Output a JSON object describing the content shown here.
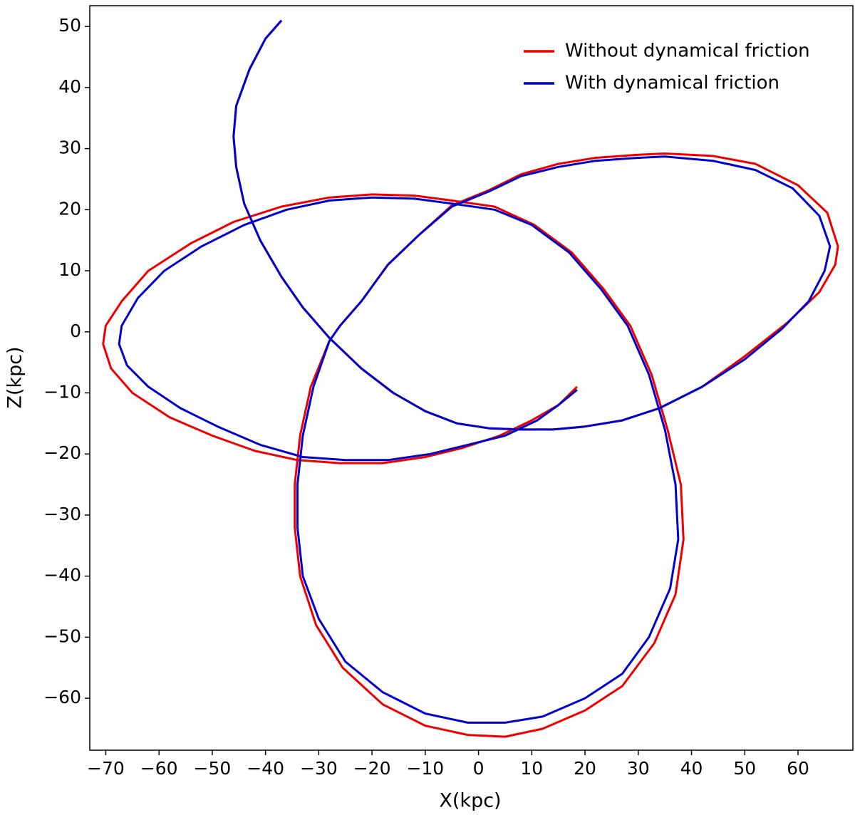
{
  "chart_data": {
    "type": "line",
    "x_label": "X(kpc)",
    "y_label": "Z(kpc)",
    "xlim": [
      -73,
      70.3
    ],
    "ylim": [
      -68.5,
      53.4
    ],
    "xticks": [
      {
        "value": -70,
        "label": "−70"
      },
      {
        "value": -60,
        "label": "−60"
      },
      {
        "value": -50,
        "label": "−50"
      },
      {
        "value": -40,
        "label": "−40"
      },
      {
        "value": -30,
        "label": "−30"
      },
      {
        "value": -20,
        "label": "−20"
      },
      {
        "value": -10,
        "label": "−10"
      },
      0,
      10,
      20,
      30,
      40,
      50,
      60
    ],
    "yticks": [
      {
        "value": -60,
        "label": "−60"
      },
      {
        "value": -50,
        "label": "−50"
      },
      {
        "value": -40,
        "label": "−40"
      },
      {
        "value": -30,
        "label": "−30"
      },
      {
        "value": -20,
        "label": "−20"
      },
      {
        "value": -10,
        "label": "−10"
      },
      0,
      10,
      20,
      30,
      40,
      50
    ],
    "grid": false,
    "legend": "upper right",
    "series": [
      {
        "name": "Without dynamical friction",
        "color": "#ee0000",
        "x": [
          -37,
          -40,
          -43,
          -45.5,
          -46,
          -45.5,
          -44,
          -41,
          -37,
          -33,
          -28,
          -22,
          -16,
          -10,
          -4,
          2,
          8,
          14,
          20,
          27,
          34,
          42,
          50,
          58,
          64,
          67,
          67.5,
          65.5,
          60,
          52,
          44,
          35,
          30,
          22,
          15,
          8,
          2,
          -5,
          -11,
          -17,
          -22,
          -26,
          -28,
          -31.5,
          -33.5,
          -34.5,
          -34.5,
          -33.5,
          -30.5,
          -25.5,
          -18,
          -10,
          -2,
          5,
          12,
          20,
          27,
          33,
          37,
          38.5,
          38,
          35.5,
          32.5,
          28.5,
          23.5,
          17.5,
          10.5,
          3,
          -5,
          -12,
          -20,
          -28,
          -37,
          -46,
          -54,
          -62,
          -67,
          -70,
          -70.5,
          -69,
          -65,
          -58,
          -50,
          -42,
          -34,
          -26,
          -18,
          -10,
          -3,
          4,
          10,
          15,
          18.5
        ],
        "y": [
          51,
          48,
          43,
          37,
          32,
          27,
          21,
          15,
          9,
          4,
          -1,
          -6,
          -10,
          -13,
          -15,
          -15.8,
          -16,
          -16,
          -15.5,
          -14.5,
          -12.5,
          -9,
          -4,
          1.5,
          6.5,
          11,
          14,
          19.5,
          24,
          27.5,
          28.8,
          29.2,
          29,
          28.5,
          27.5,
          25.8,
          23.2,
          20.7,
          16,
          11,
          5,
          1,
          -1.5,
          -9,
          -17,
          -25,
          -32,
          -40,
          -48,
          -55,
          -61,
          -64.5,
          -66,
          -66.3,
          -65,
          -62,
          -58,
          -51,
          -43,
          -34,
          -25,
          -16,
          -7,
          1,
          7,
          13,
          17.5,
          20.5,
          21.5,
          22.3,
          22.5,
          22,
          20.5,
          18,
          14.5,
          10,
          5,
          1,
          -2,
          -6,
          -10,
          -14,
          -17,
          -19.5,
          -21,
          -21.5,
          -21.5,
          -20.5,
          -19,
          -17,
          -14.5,
          -12,
          -9
        ]
      },
      {
        "name": "With dynamical friction",
        "color": "#0000cc",
        "x": [
          -37,
          -40,
          -43,
          -45.5,
          -46,
          -45.5,
          -44,
          -41,
          -37,
          -33,
          -28,
          -22,
          -16,
          -10,
          -4,
          2,
          8,
          14,
          20,
          27,
          34,
          42,
          50,
          57,
          62,
          65,
          66,
          64,
          59,
          52,
          44,
          35,
          30,
          22,
          15,
          8,
          2,
          -5,
          -11,
          -17,
          -22,
          -26,
          -28,
          -31,
          -33,
          -34,
          -34,
          -33,
          -30,
          -25,
          -18,
          -10,
          -2,
          5,
          12,
          20,
          27,
          32,
          36,
          37.5,
          37,
          35,
          32,
          28,
          23,
          17,
          10,
          3,
          -5,
          -12,
          -20,
          -28,
          -36,
          -44,
          -52,
          -59,
          -64,
          -67,
          -67.5,
          -66,
          -62,
          -56,
          -49,
          -41,
          -33,
          -25,
          -17,
          -9,
          -2,
          5,
          11,
          15,
          18.5
        ],
        "y": [
          51,
          48,
          43,
          37,
          32,
          27,
          21,
          15,
          9,
          4,
          -1,
          -6,
          -10,
          -13,
          -15,
          -15.8,
          -16,
          -16,
          -15.5,
          -14.5,
          -12.5,
          -9,
          -4.5,
          0.5,
          5,
          10,
          14,
          19,
          23.5,
          26.5,
          28,
          28.7,
          28.5,
          28,
          27,
          25.5,
          23,
          20.5,
          16,
          11,
          5,
          1,
          -1.5,
          -9,
          -17,
          -25,
          -32,
          -40,
          -47,
          -54,
          -59,
          -62.5,
          -64,
          -64,
          -63,
          -60,
          -56,
          -50,
          -42,
          -34,
          -25,
          -16,
          -7,
          1,
          7,
          13,
          17.5,
          20,
          21,
          21.8,
          22,
          21.5,
          20,
          17.5,
          14,
          10,
          5.5,
          1,
          -2,
          -5.5,
          -9,
          -12.5,
          -15.5,
          -18.5,
          -20.5,
          -21,
          -21,
          -20,
          -18.5,
          -17,
          -14.5,
          -12,
          -9.5
        ]
      }
    ]
  }
}
